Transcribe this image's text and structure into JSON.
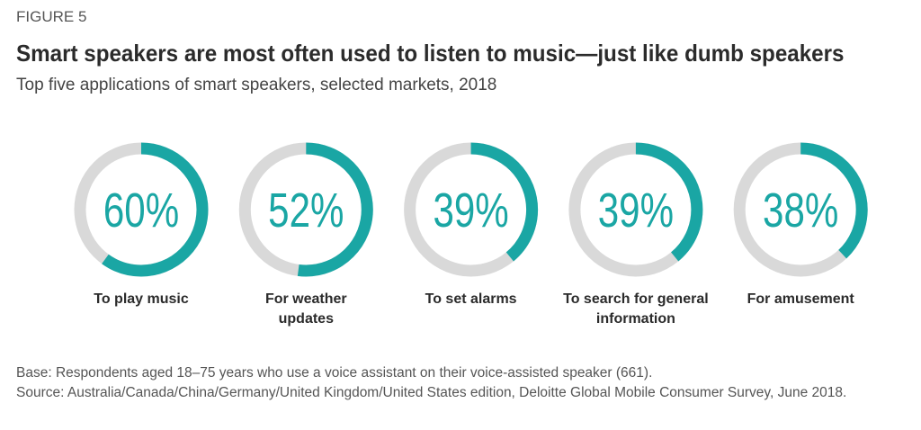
{
  "figure_label": "FIGURE 5",
  "chart_data": {
    "type": "donut",
    "title": "Smart speakers are most often used to listen to music—just like dumb speakers",
    "subtitle": "Top five applications of smart speakers, selected markets, 2018",
    "categories": [
      "To play music",
      "For weather updates",
      "To set alarms",
      "To search for general information",
      "For amusement"
    ],
    "values": [
      60,
      52,
      39,
      39,
      38
    ],
    "value_labels": [
      "60%",
      "52%",
      "39%",
      "39%",
      "38%"
    ],
    "colors": {
      "fill": "#1aa6a4",
      "track": "#d9d9d9"
    }
  },
  "footnotes": {
    "base": "Base: Respondents aged 18–75 years who use a voice assistant on their voice-assisted speaker (661).",
    "source": "Source: Australia/Canada/China/Germany/United Kingdom/United States edition, Deloitte Global Mobile Consumer Survey, June 2018."
  }
}
